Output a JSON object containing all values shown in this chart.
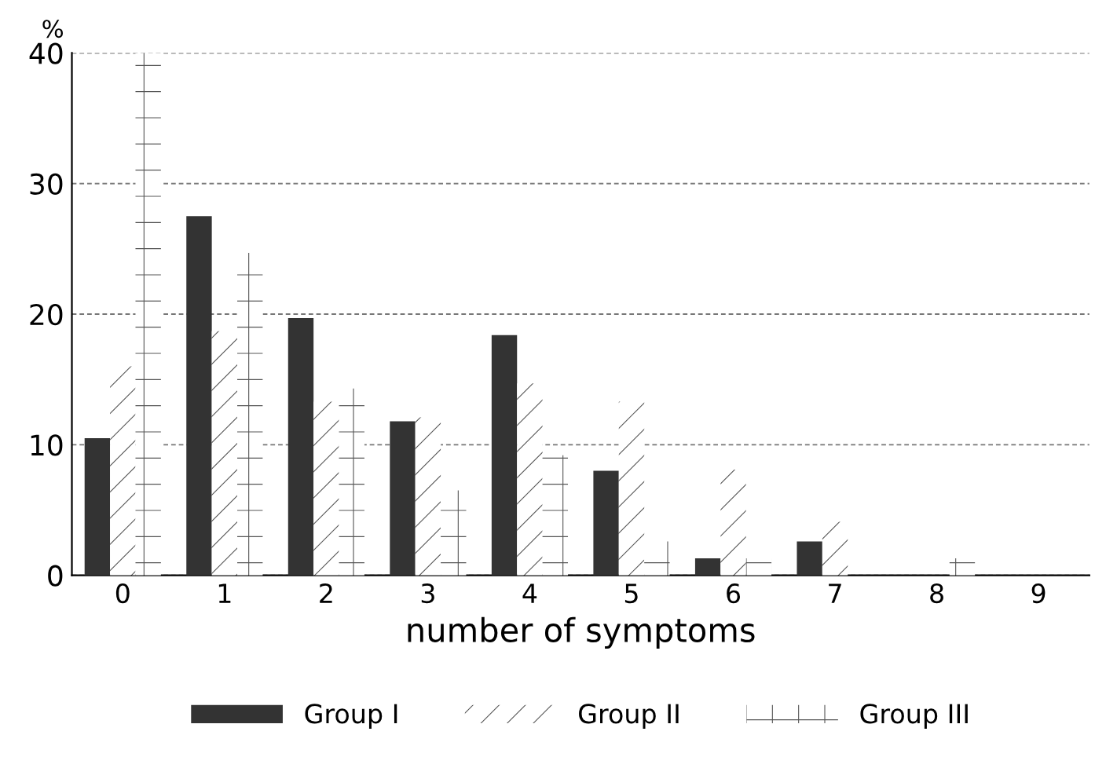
{
  "chart_data": {
    "type": "bar",
    "xlabel": "number of symptoms",
    "ylabel": "%",
    "categories": [
      "0",
      "1",
      "2",
      "3",
      "4",
      "5",
      "6",
      "7",
      "8",
      "9"
    ],
    "series": [
      {
        "name": "Group I",
        "color": "#333333",
        "values": [
          10.5,
          27.5,
          19.7,
          11.8,
          18.4,
          8.0,
          1.3,
          2.6,
          0,
          0
        ]
      },
      {
        "name": "Group II",
        "color": "#ffffff",
        "values": [
          16.0,
          18.7,
          13.3,
          12.1,
          14.7,
          13.3,
          8.1,
          4.1,
          0,
          0
        ]
      },
      {
        "name": "Group III",
        "color": "#ffffff",
        "values": [
          40,
          24.7,
          14.3,
          6.5,
          9.2,
          2.6,
          1.3,
          0,
          1.3,
          0
        ]
      }
    ],
    "ylim": [
      0,
      40
    ],
    "yticks": [
      0,
      10,
      20,
      30,
      40
    ],
    "grid": "y",
    "legend": "bottom"
  }
}
